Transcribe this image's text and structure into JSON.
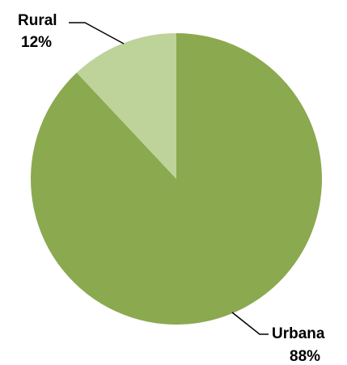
{
  "chart_data": {
    "type": "pie",
    "slices": [
      {
        "label": "Urbana",
        "value": 88,
        "value_label": "88%",
        "color": "#8ba94f"
      },
      {
        "label": "Rural",
        "value": 12,
        "value_label": "12%",
        "color": "#bdd39a"
      }
    ],
    "start_angle_deg": 0,
    "direction": "clockwise",
    "legend": "none",
    "data_labels": "outside with leader lines"
  }
}
